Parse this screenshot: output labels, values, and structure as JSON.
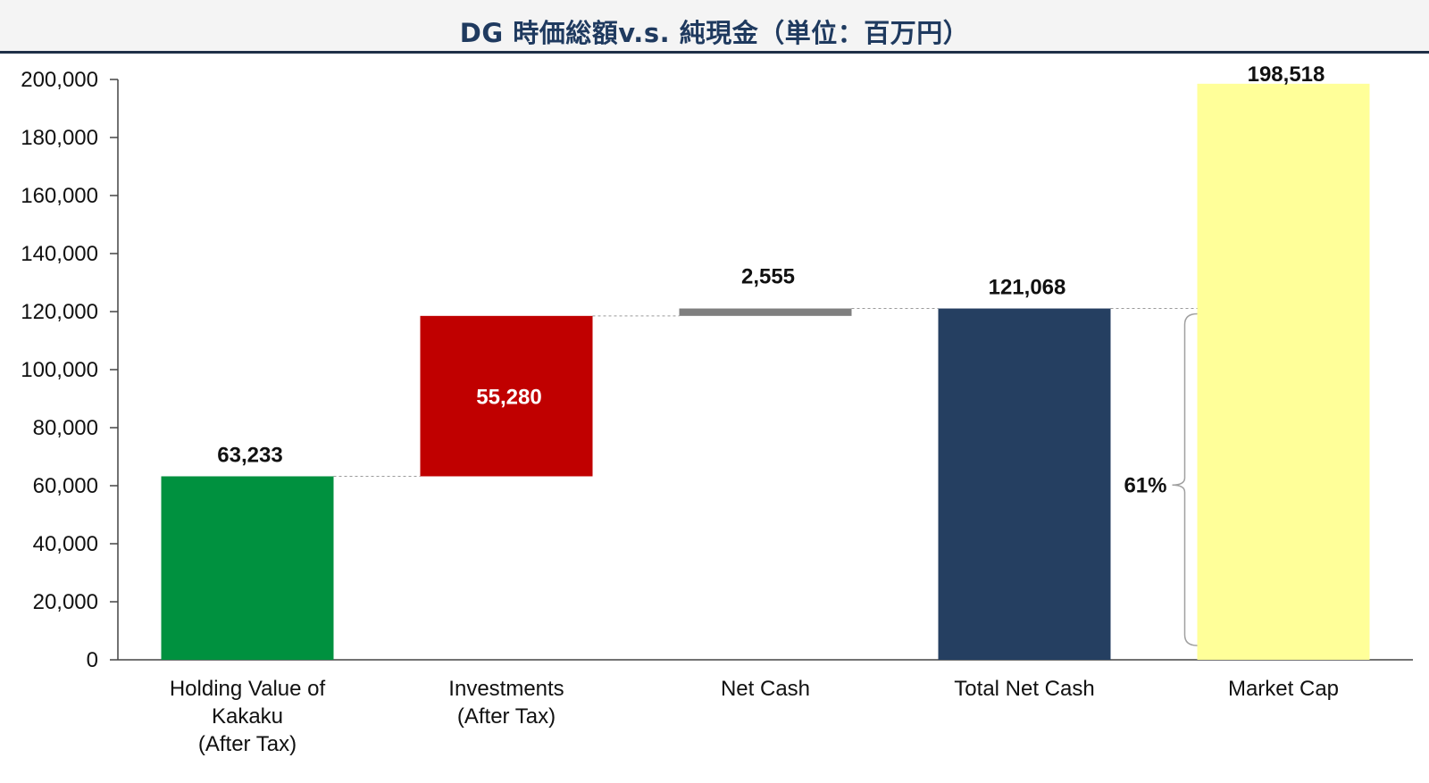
{
  "title": "DG 時価総額v.s. 純現金（単位：百万円）",
  "chart_data": {
    "type": "bar",
    "subtype": "waterfall",
    "categories": [
      [
        "Holding Value of",
        "Kakaku",
        "(After Tax)"
      ],
      [
        "Investments",
        "(After Tax)"
      ],
      [
        "Net Cash"
      ],
      [
        "Total Net Cash"
      ],
      [
        "Market Cap"
      ]
    ],
    "values": [
      63233,
      55280,
      2555,
      121068,
      198518
    ],
    "value_labels": [
      "63,233",
      "55,280",
      "2,555",
      "121,068",
      "198,518"
    ],
    "bar_kinds": [
      "total",
      "delta",
      "delta",
      "total",
      "total"
    ],
    "colors": [
      "#00913f",
      "#c00000",
      "#7f7f7f",
      "#253f61",
      "#ffff99"
    ],
    "ylim": [
      0,
      200000
    ],
    "yticks": [
      0,
      20000,
      40000,
      60000,
      80000,
      100000,
      120000,
      140000,
      160000,
      180000,
      200000
    ],
    "ytick_labels": [
      "0",
      "20,000",
      "40,000",
      "60,000",
      "80,000",
      "100,000",
      "120,000",
      "140,000",
      "160,000",
      "180,000",
      "200,000"
    ],
    "grid": false,
    "legend": "none",
    "annotation": {
      "text": "61%",
      "range": [
        0,
        121068
      ]
    }
  }
}
